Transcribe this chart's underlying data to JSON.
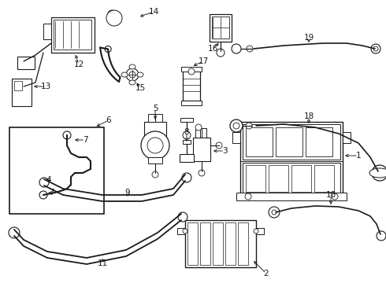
{
  "background_color": "#ffffff",
  "line_color": "#1a1a1a",
  "text_color": "#1a1a1a",
  "fig_width": 4.9,
  "fig_height": 3.6,
  "dpi": 100
}
